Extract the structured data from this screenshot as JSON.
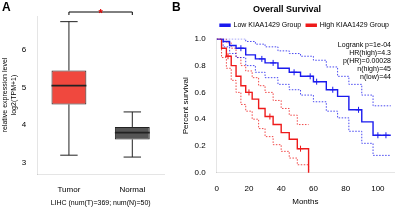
{
  "chart_data": [
    {
      "panel_label": "A",
      "type": "boxplot",
      "categories": [
        "Tumor",
        "Normal"
      ],
      "q1": [
        4.55,
        3.62
      ],
      "median": [
        5.05,
        3.8
      ],
      "q3": [
        5.45,
        3.95
      ],
      "whisker_low": [
        3.2,
        3.15
      ],
      "whisker_high": [
        6.75,
        4.35
      ],
      "colors": [
        "#f0483e",
        "#555555"
      ],
      "x_label": "LIHC (num(T)=369; num(N)=50)",
      "y_label": [
        "relative expression level",
        "log2(TPM+1)"
      ],
      "ylim": [
        2.7,
        6.9
      ],
      "yticks": [
        3,
        4,
        5,
        6
      ],
      "grid": false,
      "annotations": [
        "*"
      ]
    },
    {
      "panel_label": "B",
      "type": "line",
      "title": "Overall Survival",
      "x_label": "Months",
      "y_label": "Percent survival",
      "xlim": [
        0,
        110
      ],
      "xticks": [
        0,
        20,
        40,
        60,
        80,
        100
      ],
      "ylim": [
        0,
        1
      ],
      "yticks": [
        {
          "value": 0,
          "label": "0.0"
        },
        0.2,
        0.4,
        0.6,
        0.8,
        {
          "value": 1,
          "label": "1.0"
        }
      ],
      "grid": false,
      "legend": "top right",
      "line_style": "step",
      "series": [
        {
          "name": "Low KIAA1429 Group",
          "color": "#1a1aee",
          "x": [
            0,
            4,
            8,
            12,
            18,
            24,
            30,
            38,
            45,
            52,
            60,
            68,
            75,
            82,
            90,
            97,
            108
          ],
          "values": [
            1.0,
            0.98,
            0.95,
            0.93,
            0.88,
            0.85,
            0.82,
            0.78,
            0.75,
            0.72,
            0.68,
            0.62,
            0.57,
            0.47,
            0.38,
            0.28,
            0.28
          ],
          "ci_upper": [
            1.0,
            1.0,
            1.0,
            1.0,
            0.98,
            0.96,
            0.94,
            0.91,
            0.89,
            0.87,
            0.84,
            0.79,
            0.72,
            0.66,
            0.58,
            0.5,
            0.5
          ],
          "ci_lower": [
            1.0,
            0.94,
            0.89,
            0.86,
            0.8,
            0.75,
            0.71,
            0.66,
            0.62,
            0.58,
            0.53,
            0.46,
            0.41,
            0.31,
            0.22,
            0.13,
            0.13
          ],
          "censored_x": [
            15,
            28,
            35,
            48,
            58,
            62,
            72,
            88,
            100,
            105
          ],
          "censored_values": [
            0.93,
            0.85,
            0.82,
            0.75,
            0.72,
            0.68,
            0.62,
            0.47,
            0.28,
            0.28
          ]
        },
        {
          "name": "High KIAA1429 Group",
          "color": "#ee1a1a",
          "x": [
            0,
            3,
            6,
            9,
            12,
            15,
            18,
            22,
            26,
            30,
            35,
            40,
            45,
            50,
            57
          ],
          "values": [
            1.0,
            0.93,
            0.87,
            0.8,
            0.72,
            0.65,
            0.6,
            0.55,
            0.48,
            0.42,
            0.36,
            0.3,
            0.25,
            0.18,
            0.0
          ],
          "ci_upper": [
            1.0,
            1.0,
            0.97,
            0.93,
            0.86,
            0.8,
            0.76,
            0.71,
            0.65,
            0.6,
            0.54,
            0.48,
            0.43,
            0.36,
            0.36
          ],
          "ci_lower": [
            1.0,
            0.86,
            0.78,
            0.69,
            0.6,
            0.51,
            0.46,
            0.4,
            0.33,
            0.27,
            0.21,
            0.16,
            0.11,
            0.06,
            0.0
          ],
          "censored_x": [
            7,
            20,
            33,
            52
          ],
          "censored_values": [
            0.87,
            0.6,
            0.42,
            0.18
          ]
        }
      ],
      "annotations": [
        "Logrank p=1e-04",
        "HR(high)=4.3",
        "p(HR)=0.00028",
        "n(high)=45",
        "n(low)=44"
      ]
    }
  ]
}
